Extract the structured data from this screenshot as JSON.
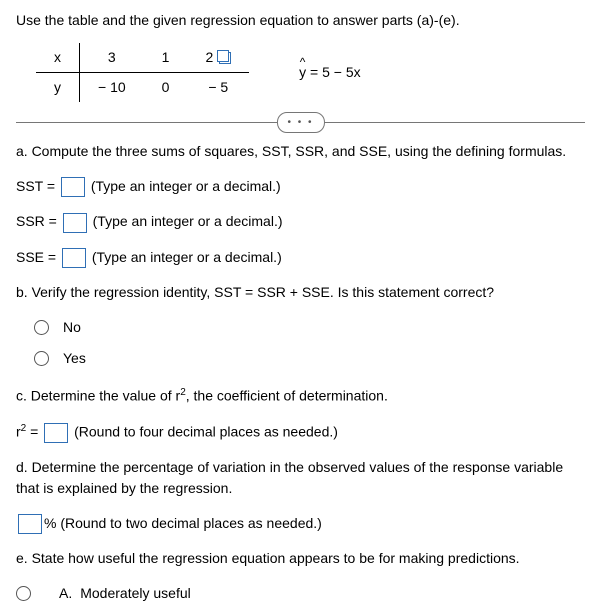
{
  "prompt": "Use the table and the given regression equation to answer parts (a)-(e).",
  "table": {
    "row1": {
      "label": "x",
      "c1": "3",
      "c2": "1",
      "c3": "2"
    },
    "row2": {
      "label": "y",
      "c1": "− 10",
      "c2": "0",
      "c3": "− 5"
    }
  },
  "equation": {
    "lhs": "y",
    "rhs": " = 5 − 5x"
  },
  "more": "• • •",
  "partA": {
    "text": "a. Compute the three sums of squares, SST, SSR, and SSE, using the defining formulas.",
    "sst_label": "SST = ",
    "ssr_label": "SSR = ",
    "sse_label": "SSE = ",
    "hint": "(Type an integer or a decimal.)"
  },
  "partB": {
    "text": "b. Verify the regression identity, SST = SSR + SSE. Is this statement correct?",
    "opt_no": "No",
    "opt_yes": "Yes"
  },
  "partC": {
    "text_pre": "c. Determine the value of r",
    "text_post": ", the coefficient of determination.",
    "lhs_pre": "r",
    "lhs_post": " = ",
    "hint": "(Round to four decimal places as needed.)"
  },
  "partD": {
    "text": "d. Determine the percentage of variation in the observed values of the response variable that is explained by the regression.",
    "pct": "% ",
    "hint": "(Round to two decimal places as needed.)"
  },
  "partE": {
    "text": "e. State how useful the regression equation appears to be for making predictions.",
    "optA_letter": "A.",
    "optA_text": "Moderately useful"
  },
  "sup2": "2"
}
